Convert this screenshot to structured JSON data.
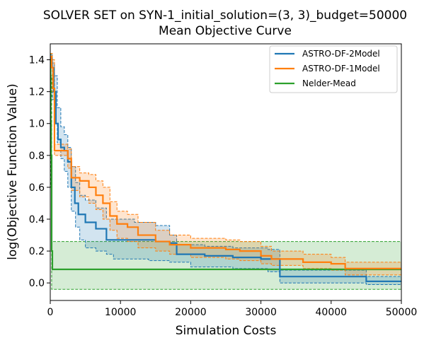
{
  "chart_data": {
    "type": "line",
    "title": "SOLVER SET on SYN-1_initial_solution=(3, 3)_budget=50000",
    "subtitle": "Mean Objective Curve",
    "xlabel": "Simulation Costs",
    "ylabel": "log(Objective Function Value)",
    "xlim": [
      0,
      50000
    ],
    "ylim": [
      -0.11,
      1.5
    ],
    "xticks": [
      0,
      10000,
      20000,
      30000,
      40000,
      50000
    ],
    "xtick_labels": [
      "0",
      "10000",
      "20000",
      "30000",
      "40000",
      "50000"
    ],
    "yticks": [
      0.0,
      0.2,
      0.4,
      0.6,
      0.8,
      1.0,
      1.2,
      1.4
    ],
    "ytick_labels": [
      "0.0",
      "0.2",
      "0.4",
      "0.6",
      "0.8",
      "1.0",
      "1.2",
      "1.4"
    ],
    "grid": false,
    "legend_position": "top-right",
    "series": [
      {
        "name": "ASTRO-DF-2Model",
        "color": "#1f77b4",
        "mean": [
          [
            0,
            1.41
          ],
          [
            250,
            1.35
          ],
          [
            500,
            1.2
          ],
          [
            800,
            1.0
          ],
          [
            1100,
            0.9
          ],
          [
            1500,
            0.85
          ],
          [
            2000,
            0.83
          ],
          [
            2500,
            0.76
          ],
          [
            3000,
            0.6
          ],
          [
            3500,
            0.5
          ],
          [
            4000,
            0.43
          ],
          [
            5000,
            0.38
          ],
          [
            6500,
            0.34
          ],
          [
            8000,
            0.27
          ],
          [
            12000,
            0.27
          ],
          [
            15000,
            0.26
          ],
          [
            17000,
            0.25
          ],
          [
            18000,
            0.18
          ],
          [
            22000,
            0.17
          ],
          [
            26000,
            0.16
          ],
          [
            30000,
            0.15
          ],
          [
            32700,
            0.04
          ],
          [
            45000,
            0.01
          ],
          [
            50000,
            0.01
          ]
        ],
        "lower": [
          [
            0,
            1.38
          ],
          [
            300,
            1.15
          ],
          [
            600,
            1.0
          ],
          [
            1000,
            0.88
          ],
          [
            1500,
            0.78
          ],
          [
            2000,
            0.7
          ],
          [
            2500,
            0.6
          ],
          [
            3000,
            0.45
          ],
          [
            3600,
            0.35
          ],
          [
            4200,
            0.27
          ],
          [
            5000,
            0.22
          ],
          [
            6500,
            0.2
          ],
          [
            8000,
            0.18
          ],
          [
            9000,
            0.15
          ],
          [
            14000,
            0.14
          ],
          [
            17000,
            0.13
          ],
          [
            20000,
            0.1
          ],
          [
            26000,
            0.09
          ],
          [
            31000,
            0.07
          ],
          [
            32700,
            0.0
          ],
          [
            45000,
            -0.01
          ],
          [
            50000,
            -0.01
          ]
        ],
        "upper": [
          [
            0,
            1.43
          ],
          [
            300,
            1.38
          ],
          [
            600,
            1.3
          ],
          [
            1000,
            1.1
          ],
          [
            1500,
            0.98
          ],
          [
            2000,
            0.93
          ],
          [
            2500,
            0.85
          ],
          [
            3000,
            0.73
          ],
          [
            3600,
            0.63
          ],
          [
            4200,
            0.55
          ],
          [
            5000,
            0.52
          ],
          [
            6500,
            0.47
          ],
          [
            8000,
            0.4
          ],
          [
            12000,
            0.38
          ],
          [
            15000,
            0.36
          ],
          [
            17000,
            0.3
          ],
          [
            18000,
            0.24
          ],
          [
            22000,
            0.23
          ],
          [
            26000,
            0.22
          ],
          [
            31000,
            0.21
          ],
          [
            32700,
            0.08
          ],
          [
            45000,
            0.04
          ],
          [
            50000,
            0.04
          ]
        ]
      },
      {
        "name": "ASTRO-DF-1Model",
        "color": "#ff7f0e",
        "mean": [
          [
            0,
            1.42
          ],
          [
            200,
            1.35
          ],
          [
            400,
            1.22
          ],
          [
            600,
            0.83
          ],
          [
            2500,
            0.78
          ],
          [
            3000,
            0.66
          ],
          [
            4200,
            0.64
          ],
          [
            5500,
            0.6
          ],
          [
            6500,
            0.55
          ],
          [
            7500,
            0.5
          ],
          [
            8500,
            0.42
          ],
          [
            9500,
            0.37
          ],
          [
            11000,
            0.35
          ],
          [
            12500,
            0.3
          ],
          [
            15000,
            0.26
          ],
          [
            17000,
            0.24
          ],
          [
            20000,
            0.22
          ],
          [
            25000,
            0.21
          ],
          [
            27000,
            0.2
          ],
          [
            30000,
            0.17
          ],
          [
            31500,
            0.15
          ],
          [
            36000,
            0.13
          ],
          [
            40000,
            0.12
          ],
          [
            42000,
            0.09
          ],
          [
            50000,
            0.09
          ]
        ],
        "lower": [
          [
            0,
            1.38
          ],
          [
            300,
            1.2
          ],
          [
            600,
            0.8
          ],
          [
            2500,
            0.72
          ],
          [
            3000,
            0.58
          ],
          [
            4200,
            0.54
          ],
          [
            5500,
            0.5
          ],
          [
            6500,
            0.46
          ],
          [
            7500,
            0.4
          ],
          [
            8500,
            0.33
          ],
          [
            9500,
            0.28
          ],
          [
            11000,
            0.26
          ],
          [
            12500,
            0.22
          ],
          [
            15000,
            0.2
          ],
          [
            17000,
            0.18
          ],
          [
            20000,
            0.16
          ],
          [
            25000,
            0.15
          ],
          [
            27000,
            0.14
          ],
          [
            30000,
            0.12
          ],
          [
            31500,
            0.11
          ],
          [
            36000,
            0.09
          ],
          [
            40000,
            0.08
          ],
          [
            42000,
            0.05
          ],
          [
            50000,
            0.05
          ]
        ],
        "upper": [
          [
            0,
            1.44
          ],
          [
            300,
            1.4
          ],
          [
            600,
            0.87
          ],
          [
            2500,
            0.84
          ],
          [
            3000,
            0.73
          ],
          [
            4200,
            0.69
          ],
          [
            5500,
            0.68
          ],
          [
            6500,
            0.64
          ],
          [
            7500,
            0.6
          ],
          [
            8500,
            0.51
          ],
          [
            9500,
            0.45
          ],
          [
            11000,
            0.43
          ],
          [
            12500,
            0.38
          ],
          [
            15000,
            0.33
          ],
          [
            17000,
            0.3
          ],
          [
            20000,
            0.28
          ],
          [
            25000,
            0.27
          ],
          [
            27000,
            0.26
          ],
          [
            30000,
            0.23
          ],
          [
            31500,
            0.2
          ],
          [
            36000,
            0.18
          ],
          [
            40000,
            0.16
          ],
          [
            42000,
            0.13
          ],
          [
            50000,
            0.13
          ]
        ]
      },
      {
        "name": "Nelder-Mead",
        "color": "#2ca02c",
        "mean": [
          [
            0,
            1.42
          ],
          [
            50,
            1.0
          ],
          [
            120,
            0.8
          ],
          [
            200,
            0.2
          ],
          [
            300,
            0.085
          ],
          [
            50000,
            0.085
          ]
        ],
        "lower": [
          [
            0,
            1.4
          ],
          [
            100,
            0.6
          ],
          [
            200,
            -0.04
          ],
          [
            50000,
            -0.04
          ]
        ],
        "upper": [
          [
            0,
            1.44
          ],
          [
            100,
            1.3
          ],
          [
            200,
            0.26
          ],
          [
            50000,
            0.26
          ]
        ]
      }
    ]
  }
}
